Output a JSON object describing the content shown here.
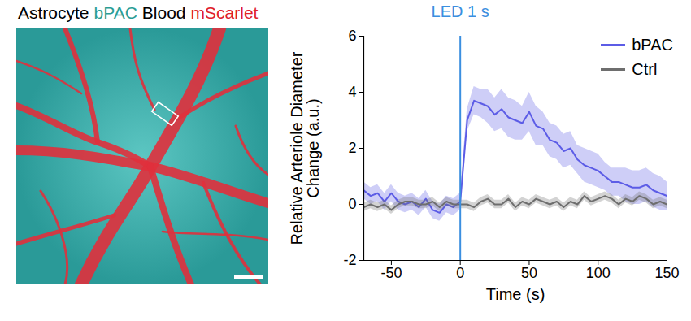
{
  "panel_title": [
    {
      "text": "Astrocyte",
      "color": "#000000"
    },
    {
      "text": "bPAC",
      "color": "#2a9d95"
    },
    {
      "text": "Blood",
      "color": "#000000"
    },
    {
      "text": "mScarlet",
      "color": "#e0202a"
    }
  ],
  "chart_data": {
    "type": "line",
    "xlabel": "Time (s)",
    "ylabel": "Relative Arteriole Diameter Change (a.u.)",
    "xlim": [
      -70,
      150
    ],
    "xticks": [
      -50,
      0,
      50,
      100,
      150
    ],
    "ylim": [
      -2,
      6
    ],
    "yticks": [
      -2,
      0,
      2,
      4,
      6
    ],
    "legend": "top-right",
    "annotations": [
      {
        "x": 0,
        "text": "LED 1 s",
        "color": "#3b8fe0"
      }
    ],
    "x": [
      -70,
      -65,
      -60,
      -55,
      -50,
      -45,
      -40,
      -35,
      -30,
      -25,
      -20,
      -15,
      -10,
      -5,
      0,
      5,
      10,
      15,
      20,
      25,
      30,
      35,
      40,
      45,
      50,
      55,
      60,
      65,
      70,
      75,
      80,
      85,
      90,
      95,
      100,
      105,
      110,
      115,
      120,
      125,
      130,
      135,
      140,
      145,
      150
    ],
    "series": [
      {
        "name": "bPAC",
        "color": "#5c5ce6",
        "values": [
          0.5,
          0.3,
          0.4,
          0.1,
          0.4,
          0.1,
          0.0,
          0.1,
          -0.1,
          0.2,
          -0.2,
          -0.3,
          0.0,
          -0.1,
          0.1,
          3.0,
          3.7,
          3.6,
          3.5,
          3.2,
          3.4,
          3.1,
          3.0,
          2.9,
          3.3,
          2.8,
          2.7,
          2.3,
          2.2,
          1.9,
          2.0,
          1.6,
          1.4,
          1.3,
          1.2,
          1.0,
          0.8,
          0.8,
          0.7,
          0.6,
          0.6,
          0.7,
          0.5,
          0.4,
          0.3
        ],
        "error": [
          0.3,
          0.3,
          0.3,
          0.3,
          0.3,
          0.3,
          0.3,
          0.3,
          0.3,
          0.3,
          0.3,
          0.3,
          0.3,
          0.3,
          0.3,
          0.4,
          0.5,
          0.5,
          0.6,
          0.6,
          0.7,
          0.7,
          0.7,
          0.6,
          0.7,
          0.7,
          0.6,
          0.6,
          0.6,
          0.6,
          0.6,
          0.5,
          0.6,
          0.6,
          0.6,
          0.5,
          0.5,
          0.5,
          0.6,
          0.6,
          0.6,
          0.6,
          0.6,
          0.6,
          0.5
        ]
      },
      {
        "name": "Ctrl",
        "color": "#6e6e6e",
        "values": [
          -0.1,
          0.0,
          -0.1,
          0.0,
          -0.2,
          0.0,
          0.1,
          0.1,
          0.0,
          0.0,
          0.1,
          -0.1,
          0.1,
          0.0,
          0.0,
          0.0,
          -0.1,
          0.1,
          0.2,
          0.0,
          0.0,
          0.2,
          -0.1,
          0.1,
          0.0,
          0.2,
          0.1,
          0.0,
          0.1,
          -0.1,
          0.1,
          0.0,
          0.3,
          0.1,
          0.2,
          0.3,
          0.2,
          0.0,
          0.2,
          0.1,
          0.3,
          0.2,
          0.0,
          0.1,
          0.0
        ],
        "error": [
          0.15,
          0.15,
          0.15,
          0.15,
          0.15,
          0.15,
          0.15,
          0.15,
          0.15,
          0.15,
          0.15,
          0.15,
          0.15,
          0.15,
          0.15,
          0.15,
          0.15,
          0.15,
          0.15,
          0.15,
          0.15,
          0.15,
          0.15,
          0.15,
          0.15,
          0.15,
          0.15,
          0.15,
          0.15,
          0.15,
          0.15,
          0.15,
          0.15,
          0.15,
          0.15,
          0.15,
          0.15,
          0.15,
          0.15,
          0.15,
          0.15,
          0.15,
          0.15,
          0.15,
          0.15
        ]
      }
    ]
  }
}
